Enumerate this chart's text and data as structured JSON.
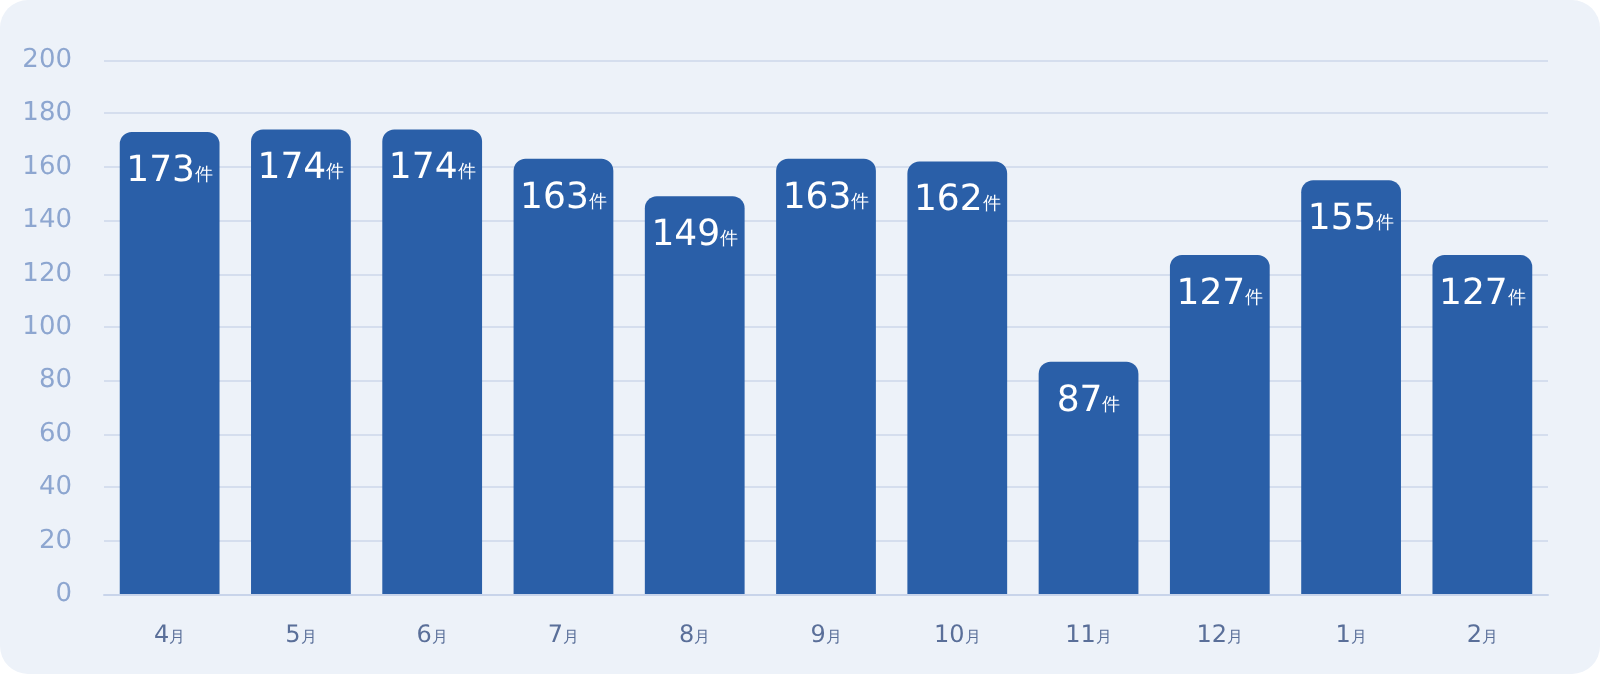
{
  "chart_data": {
    "type": "bar",
    "categories": [
      "4月",
      "5月",
      "6月",
      "7月",
      "8月",
      "9月",
      "10月",
      "11月",
      "12月",
      "1月",
      "2月"
    ],
    "values": [
      173,
      174,
      174,
      163,
      149,
      163,
      162,
      87,
      127,
      155,
      127
    ],
    "value_labels": [
      "173件",
      "174件",
      "174件",
      "163件",
      "149件",
      "163件",
      "162件",
      "87件",
      "127件",
      "155件",
      "127件"
    ],
    "color": "#2a5fa8",
    "ylim": [
      0,
      200
    ],
    "yticks": [
      0,
      20,
      40,
      60,
      80,
      100,
      120,
      140,
      160,
      180,
      200
    ],
    "grid": "y"
  }
}
